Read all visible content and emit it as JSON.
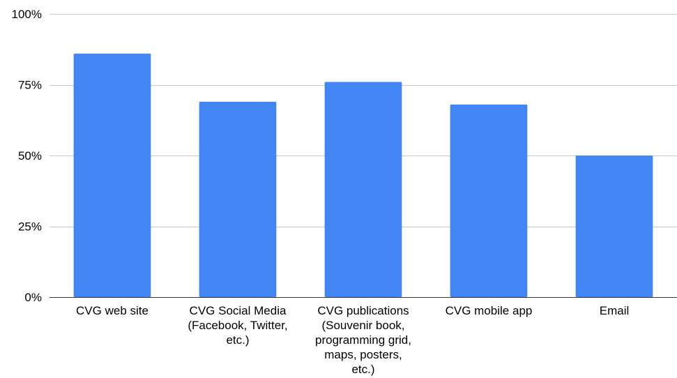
{
  "chart_data": {
    "type": "bar",
    "title": "",
    "xlabel": "",
    "ylabel": "",
    "categories": [
      [
        "CVG web site"
      ],
      [
        "CVG Social Media",
        "(Facebook, Twitter,",
        "etc.)"
      ],
      [
        "CVG publications",
        "(Souvenir book,",
        "programming grid,",
        "maps, posters,",
        "etc.)"
      ],
      [
        "CVG mobile app"
      ],
      [
        "Email"
      ]
    ],
    "values": [
      86,
      69,
      76,
      68,
      50
    ],
    "ylim": [
      0,
      100
    ],
    "yticks": [
      0,
      25,
      50,
      75,
      100
    ],
    "ytick_labels": [
      "0%",
      "25%",
      "50%",
      "75%",
      "100%"
    ],
    "grid": true,
    "legend": "none",
    "colors": {
      "bar": "#4285f4",
      "grid": "#c8c8c8",
      "axis": "#333333"
    }
  }
}
